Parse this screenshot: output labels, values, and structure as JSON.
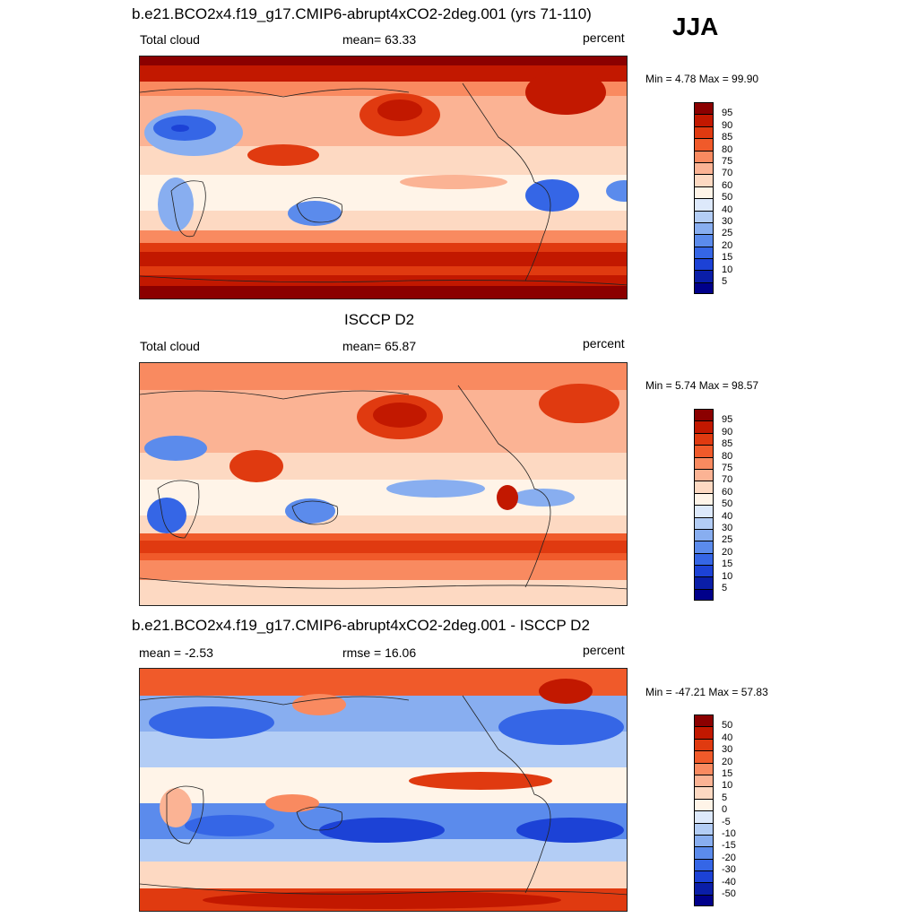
{
  "season": "JJA",
  "panels": [
    {
      "title": "b.e21.BCO2x4.f19_g17.CMIP6-abrupt4xCO2-2deg.001 (yrs 71-110)",
      "left_label": "Total cloud",
      "center_label": "mean=  63.33",
      "right_label": "percent",
      "minmax": "Min =   4.78 Max =  99.90",
      "colorbar_labels": [
        "95",
        "90",
        "85",
        "80",
        "75",
        "70",
        "60",
        "50",
        "40",
        "30",
        "25",
        "20",
        "15",
        "10",
        "5"
      ],
      "colorbar_colors": [
        "#8b0000",
        "#c21800",
        "#e03a10",
        "#f05a2a",
        "#f98a60",
        "#fbb394",
        "#fdd9c2",
        "#fff4e8",
        "#dde9fb",
        "#b3cdf5",
        "#88aef0",
        "#5b8bec",
        "#3566e6",
        "#1c42d6",
        "#0a1ea8",
        "#00008a"
      ]
    },
    {
      "title": "ISCCP D2",
      "left_label": "Total cloud",
      "center_label": "mean=  65.87",
      "right_label": "percent",
      "minmax": "Min =   5.74 Max =  98.57",
      "colorbar_labels": [
        "95",
        "90",
        "85",
        "80",
        "75",
        "70",
        "60",
        "50",
        "40",
        "30",
        "25",
        "20",
        "15",
        "10",
        "5"
      ],
      "colorbar_colors": [
        "#8b0000",
        "#c21800",
        "#e03a10",
        "#f05a2a",
        "#f98a60",
        "#fbb394",
        "#fdd9c2",
        "#fff4e8",
        "#dde9fb",
        "#b3cdf5",
        "#88aef0",
        "#5b8bec",
        "#3566e6",
        "#1c42d6",
        "#0a1ea8",
        "#00008a"
      ]
    },
    {
      "title": "b.e21.BCO2x4.f19_g17.CMIP6-abrupt4xCO2-2deg.001 - ISCCP D2",
      "left_label": "mean =  -2.53",
      "center_label": "rmse =  16.06",
      "right_label": "percent",
      "minmax": "Min = -47.21 Max =  57.83",
      "colorbar_labels": [
        "50",
        "40",
        "30",
        "20",
        "15",
        "10",
        "5",
        "0",
        "-5",
        "-10",
        "-15",
        "-20",
        "-30",
        "-40",
        "-50"
      ],
      "colorbar_colors": [
        "#8b0000",
        "#c21800",
        "#e03a10",
        "#f05a2a",
        "#f98a60",
        "#fbb394",
        "#fdd9c2",
        "#fff4e8",
        "#dde9fb",
        "#b3cdf5",
        "#88aef0",
        "#5b8bec",
        "#3566e6",
        "#1c42d6",
        "#0a1ea8",
        "#00008a"
      ]
    }
  ]
}
